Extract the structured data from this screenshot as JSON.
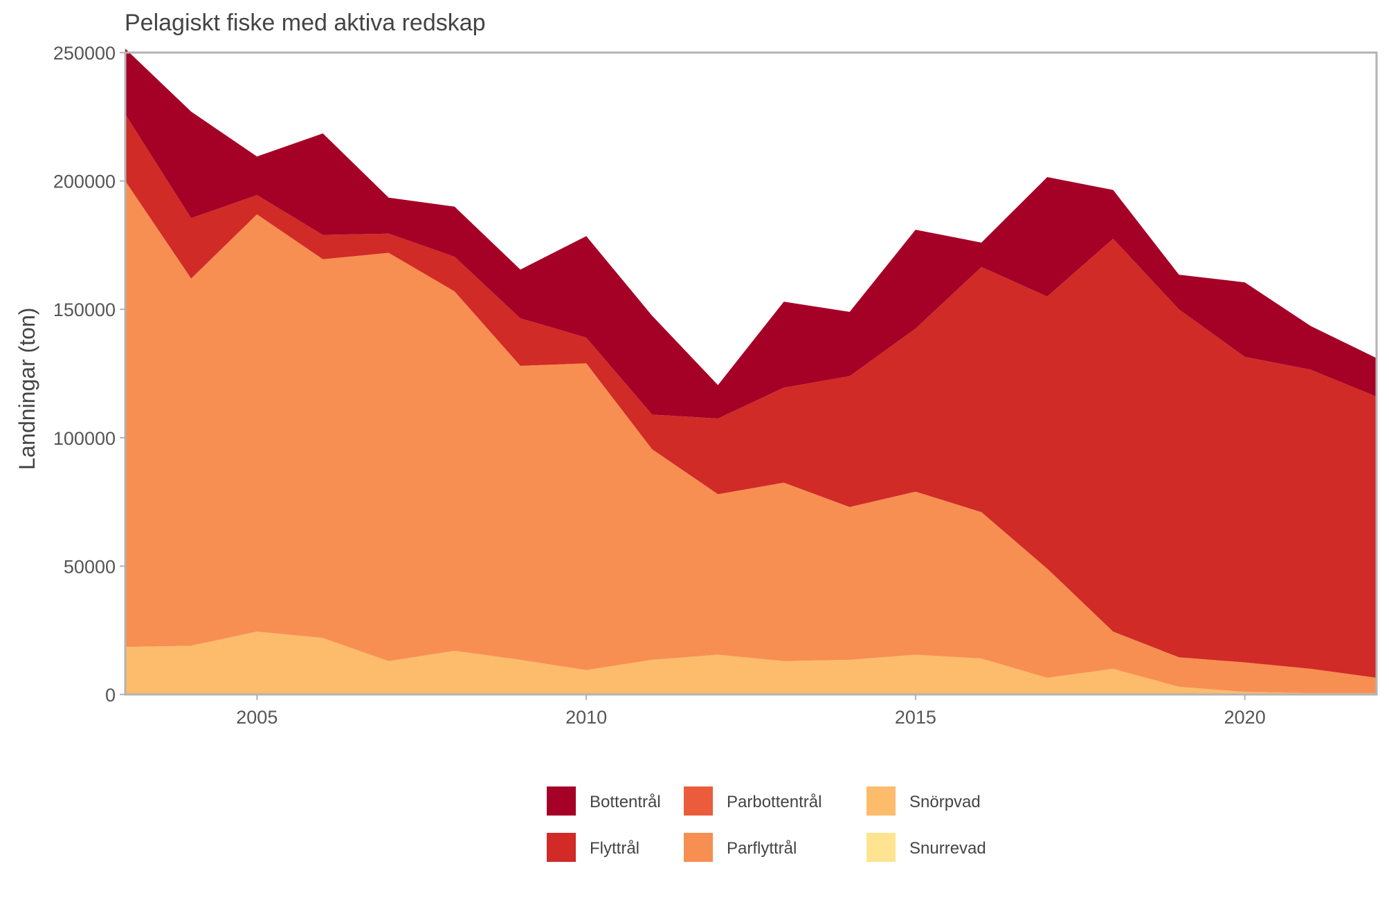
{
  "chart_data": {
    "type": "area",
    "stacked": true,
    "title": "Pelagiskt fiske med aktiva redskap",
    "xlabel": "",
    "ylabel": "Landningar (ton)",
    "x": [
      2003,
      2004,
      2005,
      2006,
      2007,
      2008,
      2009,
      2010,
      2011,
      2012,
      2013,
      2014,
      2015,
      2016,
      2017,
      2018,
      2019,
      2020,
      2021,
      2022
    ],
    "xlim": [
      2003,
      2022
    ],
    "ylim": [
      0,
      250000
    ],
    "xticks": [
      2005,
      2010,
      2015,
      2020
    ],
    "yticks": [
      0,
      50000,
      100000,
      150000,
      200000,
      250000
    ],
    "ytick_labels": [
      "0",
      "50000",
      "100000",
      "150000",
      "200000",
      "250000"
    ],
    "legend_position": "bottom",
    "grid": false,
    "series": [
      {
        "name": "Snurrevad",
        "color": "#FEE391",
        "values": [
          0,
          0,
          0,
          0,
          0,
          0,
          0,
          0,
          0,
          0,
          0,
          0,
          0,
          0,
          0,
          0,
          0,
          0,
          0,
          0
        ]
      },
      {
        "name": "Snörpvad",
        "color": "#FDBB6C",
        "values": [
          18500,
          19000,
          24500,
          22000,
          13000,
          17000,
          13500,
          9500,
          13500,
          15500,
          13000,
          13500,
          15500,
          14000,
          6500,
          10000,
          3000,
          1000,
          500,
          500
        ]
      },
      {
        "name": "Parflyttrål",
        "color": "#F78F53",
        "values": [
          181500,
          143000,
          162500,
          147500,
          159000,
          140000,
          114500,
          119500,
          82000,
          62500,
          69500,
          59500,
          63500,
          57000,
          42500,
          14500,
          11500,
          11500,
          9500,
          6000
        ]
      },
      {
        "name": "Parbottentrål",
        "color": "#EA5C3B",
        "values": [
          0,
          0,
          0,
          0,
          0,
          0,
          0,
          0,
          0,
          0,
          0,
          0,
          0,
          0,
          0,
          0,
          0,
          0,
          0,
          0
        ]
      },
      {
        "name": "Flyttrål",
        "color": "#D12B27",
        "values": [
          26000,
          23500,
          7500,
          9500,
          7500,
          13500,
          18500,
          10000,
          13500,
          29500,
          37000,
          51000,
          63500,
          95500,
          106000,
          153000,
          135500,
          119000,
          116500,
          109500
        ]
      },
      {
        "name": "Bottentrål",
        "color": "#A50026",
        "values": [
          25500,
          41500,
          15000,
          39500,
          14000,
          19500,
          19000,
          39500,
          38500,
          13000,
          33500,
          25000,
          38500,
          9500,
          46500,
          19000,
          13500,
          29000,
          17000,
          15000
        ]
      }
    ],
    "legend": {
      "items": [
        {
          "label": "Bottentrål",
          "color": "#A50026"
        },
        {
          "label": "Flyttrål",
          "color": "#D12B27"
        },
        {
          "label": "Parbottentrål",
          "color": "#EA5C3B"
        },
        {
          "label": "Parflyttrål",
          "color": "#F78F53"
        },
        {
          "label": "Snörpvad",
          "color": "#FDBB6C"
        },
        {
          "label": "Snurrevad",
          "color": "#FEE391"
        }
      ]
    }
  }
}
